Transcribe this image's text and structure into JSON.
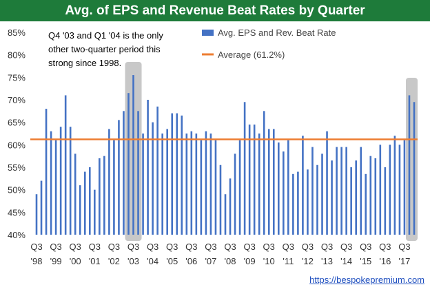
{
  "chart_data": {
    "type": "bar",
    "title": "Avg. of EPS and Revenue Beat Rates by Quarter",
    "y_tick_labels": [
      "85%",
      "80%",
      "75%",
      "70%",
      "65%",
      "60%",
      "55%",
      "50%",
      "45%",
      "40%"
    ],
    "ylim": [
      40,
      85
    ],
    "x_tick_labels": [
      {
        "quarter": "Q3",
        "year": "'98"
      },
      {
        "quarter": "Q3",
        "year": "'99"
      },
      {
        "quarter": "Q3",
        "year": "'00"
      },
      {
        "quarter": "Q3",
        "year": "'01"
      },
      {
        "quarter": "Q3",
        "year": "'02"
      },
      {
        "quarter": "Q3",
        "year": "'03"
      },
      {
        "quarter": "Q3",
        "year": "'04"
      },
      {
        "quarter": "Q3",
        "year": "'05"
      },
      {
        "quarter": "Q3",
        "year": "'06"
      },
      {
        "quarter": "Q3",
        "year": "'07"
      },
      {
        "quarter": "Q3",
        "year": "'08"
      },
      {
        "quarter": "Q3",
        "year": "'09"
      },
      {
        "quarter": "Q3",
        "year": "'10"
      },
      {
        "quarter": "Q3",
        "year": "'11"
      },
      {
        "quarter": "Q3",
        "year": "'12"
      },
      {
        "quarter": "Q3",
        "year": "'13"
      },
      {
        "quarter": "Q3",
        "year": "'14"
      },
      {
        "quarter": "Q3",
        "year": "'15"
      },
      {
        "quarter": "Q3",
        "year": "'16"
      },
      {
        "quarter": "Q3",
        "year": "'17"
      }
    ],
    "series": [
      {
        "name": "Avg. EPS and Rev. Beat Rate",
        "color": "#4472c4",
        "values": [
          49,
          52,
          68,
          63,
          61,
          64,
          71,
          64,
          58,
          51,
          54,
          55,
          50,
          57,
          57.5,
          63.5,
          61,
          65.5,
          67.5,
          71.5,
          75.5,
          67.5,
          62.5,
          70,
          65,
          68.5,
          62.5,
          63.5,
          67,
          67,
          66.5,
          62.5,
          63,
          62.5,
          61,
          63,
          62.5,
          61,
          55.5,
          49,
          52.5,
          58,
          61,
          69.5,
          64.5,
          64.5,
          62.5,
          67.5,
          63.5,
          63.5,
          60.5,
          58.5,
          61,
          53.5,
          54,
          62,
          54.5,
          59.5,
          55.5,
          58,
          63,
          56.5,
          59.5,
          59.5,
          59.5,
          55,
          56.5,
          59.5,
          53.5,
          57.5,
          57,
          60,
          55,
          60,
          62,
          60,
          61,
          71,
          69.5
        ]
      }
    ],
    "average": {
      "name": "Average (61.2%)",
      "value": 61.2,
      "color": "#ed7d31"
    },
    "highlight_color": "#c8c8c8",
    "annotation": [
      "Q4 '03 and Q1 '04 is the only",
      "other two-quarter period this",
      "strong since 1998."
    ],
    "grid": false,
    "legend": "top-right"
  },
  "footer": {
    "link_text": "https://bespokepremium.com"
  }
}
